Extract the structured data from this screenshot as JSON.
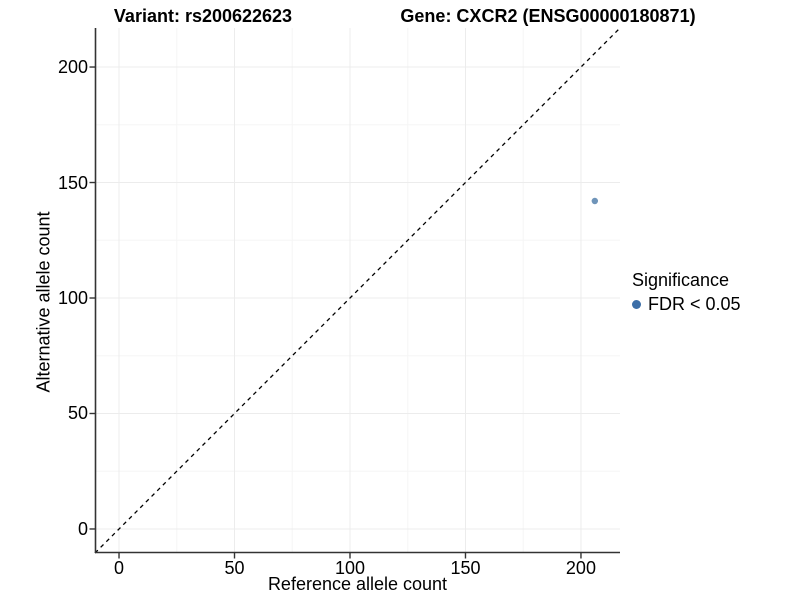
{
  "header": {
    "variant_title": "Variant: rs200622623",
    "gene_title": "Gene: CXCR2 (ENSG00000180871)"
  },
  "chart_data": {
    "type": "scatter",
    "xlabel": "Reference allele count",
    "ylabel": "Alternative allele count",
    "xlim": [
      -10.4,
      216.9
    ],
    "ylim": [
      -10.4,
      216.9
    ],
    "x_ticks": [
      0,
      50,
      100,
      150,
      200
    ],
    "y_ticks": [
      0,
      50,
      100,
      150,
      200
    ],
    "x_minor_ticks": [
      25,
      75,
      125,
      175
    ],
    "y_minor_ticks": [
      25,
      75,
      125,
      175
    ],
    "grid": true,
    "points": [
      {
        "x": 206,
        "y": 142,
        "series": "FDR < 0.05"
      }
    ],
    "identity_line": {
      "type": "y=x",
      "style": "dashed"
    },
    "legend": {
      "title": "Significance",
      "position": "right",
      "items": [
        {
          "label": "FDR < 0.05",
          "color": "#3D6FA8"
        }
      ]
    },
    "colors": {
      "point": "#6F94B9",
      "grid_major": "#ECECEC",
      "grid_minor": "#F5F5F5",
      "axis": "#333333",
      "dashed_line": "#000000",
      "text": "#000000"
    }
  }
}
